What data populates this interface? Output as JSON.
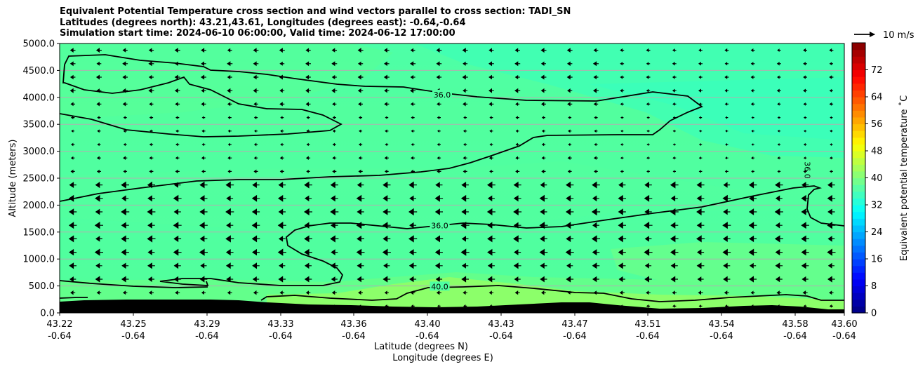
{
  "titles": [
    "Equivalent Potential Temperature cross section and wind vectors parallel to cross section: TADI_SN",
    "Latitudes (degrees north): 43.21,43.61, Longitudes (degrees east): -0.64,-0.64",
    "Simulation start time: 2024-06-10 06:00:00, Valid time: 2024-06-12 17:00:00"
  ],
  "chart_data": {
    "type": "heatmap",
    "xlabel": "Latitude (degrees N)",
    "xlabel2": "Longitude (degrees E)",
    "ylabel": "Altitude (meters)",
    "ylim": [
      0,
      5000
    ],
    "y_ticks": [
      "0.0",
      "500.0",
      "1000.0",
      "1500.0",
      "2000.0",
      "2500.0",
      "3000.0",
      "3500.0",
      "4000.0",
      "4500.0",
      "5000.0"
    ],
    "x_ticks": [
      {
        "lat": "43.22",
        "lon": "-0.64"
      },
      {
        "lat": "43.25",
        "lon": "-0.64"
      },
      {
        "lat": "43.29",
        "lon": "-0.64"
      },
      {
        "lat": "43.33",
        "lon": "-0.64"
      },
      {
        "lat": "43.36",
        "lon": "-0.64"
      },
      {
        "lat": "43.40",
        "lon": "-0.64"
      },
      {
        "lat": "43.43",
        "lon": "-0.64"
      },
      {
        "lat": "43.47",
        "lon": "-0.64"
      },
      {
        "lat": "43.51",
        "lon": "-0.64"
      },
      {
        "lat": "43.54",
        "lon": "-0.64"
      },
      {
        "lat": "43.58",
        "lon": "-0.64"
      },
      {
        "lat": "43.60",
        "lon": "-0.64"
      }
    ],
    "grid": true,
    "colorbar": {
      "label": "Equivalent potential temperature $^\\circ$C",
      "label_text": "Equivalent potential temperature ˚C",
      "range": [
        0,
        80
      ],
      "ticks": [
        "0",
        "8",
        "16",
        "24",
        "32",
        "40",
        "48",
        "56",
        "64",
        "72"
      ]
    },
    "contour_labels": [
      {
        "text": "36.0",
        "lat": 43.406,
        "alt": 4050
      },
      {
        "text": "36.0",
        "lat": 43.405,
        "alt": 1620
      },
      {
        "text": "40.0",
        "lat": 43.405,
        "alt": 490
      },
      {
        "text": "36.0",
        "lat": 43.585,
        "alt": 2650
      }
    ],
    "quiver_key": {
      "label": "10 m/s"
    },
    "wind_direction": "southward (toward lower latitude)"
  }
}
